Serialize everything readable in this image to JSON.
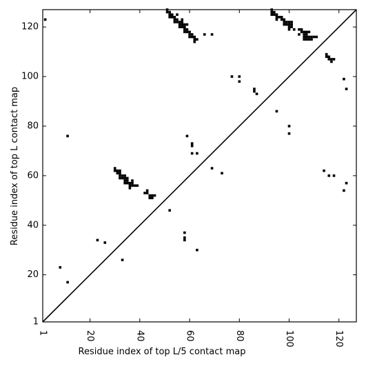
{
  "chart_data": {
    "type": "scatter",
    "xlabel": "Residue index of top L/5 contact map",
    "ylabel": "Residue index of top L contact map",
    "xlim": [
      1,
      127
    ],
    "ylim": [
      1,
      127
    ],
    "xticks": [
      1,
      20,
      40,
      60,
      80,
      100,
      120
    ],
    "yticks": [
      1,
      20,
      40,
      60,
      80,
      100,
      120
    ],
    "x_tick_labels_rotated": true,
    "diagonal_line": true,
    "marker": "square",
    "marker_color": "#000000",
    "line_color": "#000000",
    "series": [
      {
        "values": [
          [
            2,
            123
          ],
          [
            11,
            76
          ],
          [
            8,
            23
          ],
          [
            11,
            17
          ],
          [
            23,
            34
          ],
          [
            26,
            33
          ],
          [
            33,
            26
          ],
          [
            52,
            46
          ],
          [
            58,
            37
          ],
          [
            58,
            35
          ],
          [
            58,
            34
          ],
          [
            63,
            30
          ],
          [
            30,
            63
          ],
          [
            30,
            62
          ],
          [
            31,
            62
          ],
          [
            31,
            61
          ],
          [
            32,
            62
          ],
          [
            32,
            61
          ],
          [
            32,
            60
          ],
          [
            32,
            59
          ],
          [
            33,
            60
          ],
          [
            33,
            59
          ],
          [
            34,
            60
          ],
          [
            34,
            59
          ],
          [
            34,
            58
          ],
          [
            34,
            57
          ],
          [
            35,
            59
          ],
          [
            35,
            58
          ],
          [
            35,
            57
          ],
          [
            36,
            57
          ],
          [
            36,
            56
          ],
          [
            36,
            55
          ],
          [
            37,
            58
          ],
          [
            37,
            57
          ],
          [
            37,
            56
          ],
          [
            38,
            56
          ],
          [
            39,
            56
          ],
          [
            42,
            53
          ],
          [
            43,
            54
          ],
          [
            43,
            53
          ],
          [
            44,
            52
          ],
          [
            44,
            51
          ],
          [
            45,
            52
          ],
          [
            45,
            51
          ],
          [
            46,
            52
          ],
          [
            51,
            127
          ],
          [
            51,
            126
          ],
          [
            52,
            126
          ],
          [
            52,
            125
          ],
          [
            52,
            124
          ],
          [
            53,
            125
          ],
          [
            53,
            124
          ],
          [
            54,
            124
          ],
          [
            54,
            123
          ],
          [
            54,
            122
          ],
          [
            55,
            125
          ],
          [
            55,
            123
          ],
          [
            55,
            122
          ],
          [
            56,
            122
          ],
          [
            56,
            121
          ],
          [
            56,
            120
          ],
          [
            57,
            123
          ],
          [
            57,
            122
          ],
          [
            57,
            121
          ],
          [
            57,
            120
          ],
          [
            58,
            121
          ],
          [
            58,
            120
          ],
          [
            58,
            119
          ],
          [
            58,
            118
          ],
          [
            59,
            121
          ],
          [
            59,
            119
          ],
          [
            59,
            118
          ],
          [
            60,
            118
          ],
          [
            60,
            117
          ],
          [
            60,
            116
          ],
          [
            61,
            117
          ],
          [
            61,
            116
          ],
          [
            62,
            116
          ],
          [
            62,
            115
          ],
          [
            62,
            114
          ],
          [
            63,
            115
          ],
          [
            66,
            117
          ],
          [
            69,
            117
          ],
          [
            59,
            76
          ],
          [
            61,
            73
          ],
          [
            61,
            72
          ],
          [
            61,
            69
          ],
          [
            63,
            69
          ],
          [
            69,
            63
          ],
          [
            73,
            61
          ],
          [
            77,
            100
          ],
          [
            80,
            100
          ],
          [
            80,
            98
          ],
          [
            86,
            95
          ],
          [
            86,
            94
          ],
          [
            87,
            93
          ],
          [
            95,
            86
          ],
          [
            100,
            80
          ],
          [
            100,
            77
          ],
          [
            93,
            127
          ],
          [
            93,
            126
          ],
          [
            93,
            125
          ],
          [
            94,
            126
          ],
          [
            94,
            125
          ],
          [
            95,
            125
          ],
          [
            95,
            124
          ],
          [
            95,
            123
          ],
          [
            96,
            124
          ],
          [
            97,
            124
          ],
          [
            97,
            123
          ],
          [
            98,
            123
          ],
          [
            98,
            122
          ],
          [
            98,
            121
          ],
          [
            99,
            122
          ],
          [
            99,
            121
          ],
          [
            100,
            122
          ],
          [
            100,
            121
          ],
          [
            100,
            120
          ],
          [
            100,
            119
          ],
          [
            101,
            122
          ],
          [
            101,
            121
          ],
          [
            101,
            120
          ],
          [
            102,
            119
          ],
          [
            104,
            119
          ],
          [
            104,
            117
          ],
          [
            105,
            119
          ],
          [
            105,
            118
          ],
          [
            106,
            118
          ],
          [
            106,
            117
          ],
          [
            106,
            116
          ],
          [
            106,
            115
          ],
          [
            107,
            118
          ],
          [
            107,
            117
          ],
          [
            107,
            116
          ],
          [
            107,
            115
          ],
          [
            108,
            118
          ],
          [
            108,
            116
          ],
          [
            108,
            115
          ],
          [
            109,
            116
          ],
          [
            109,
            115
          ],
          [
            110,
            116
          ],
          [
            111,
            116
          ],
          [
            115,
            109
          ],
          [
            115,
            108
          ],
          [
            116,
            108
          ],
          [
            116,
            107
          ],
          [
            117,
            107
          ],
          [
            117,
            106
          ],
          [
            118,
            107
          ],
          [
            114,
            62
          ],
          [
            116,
            60
          ],
          [
            118,
            60
          ],
          [
            122,
            99
          ],
          [
            123,
            95
          ],
          [
            122,
            54
          ],
          [
            123,
            57
          ]
        ]
      }
    ]
  }
}
